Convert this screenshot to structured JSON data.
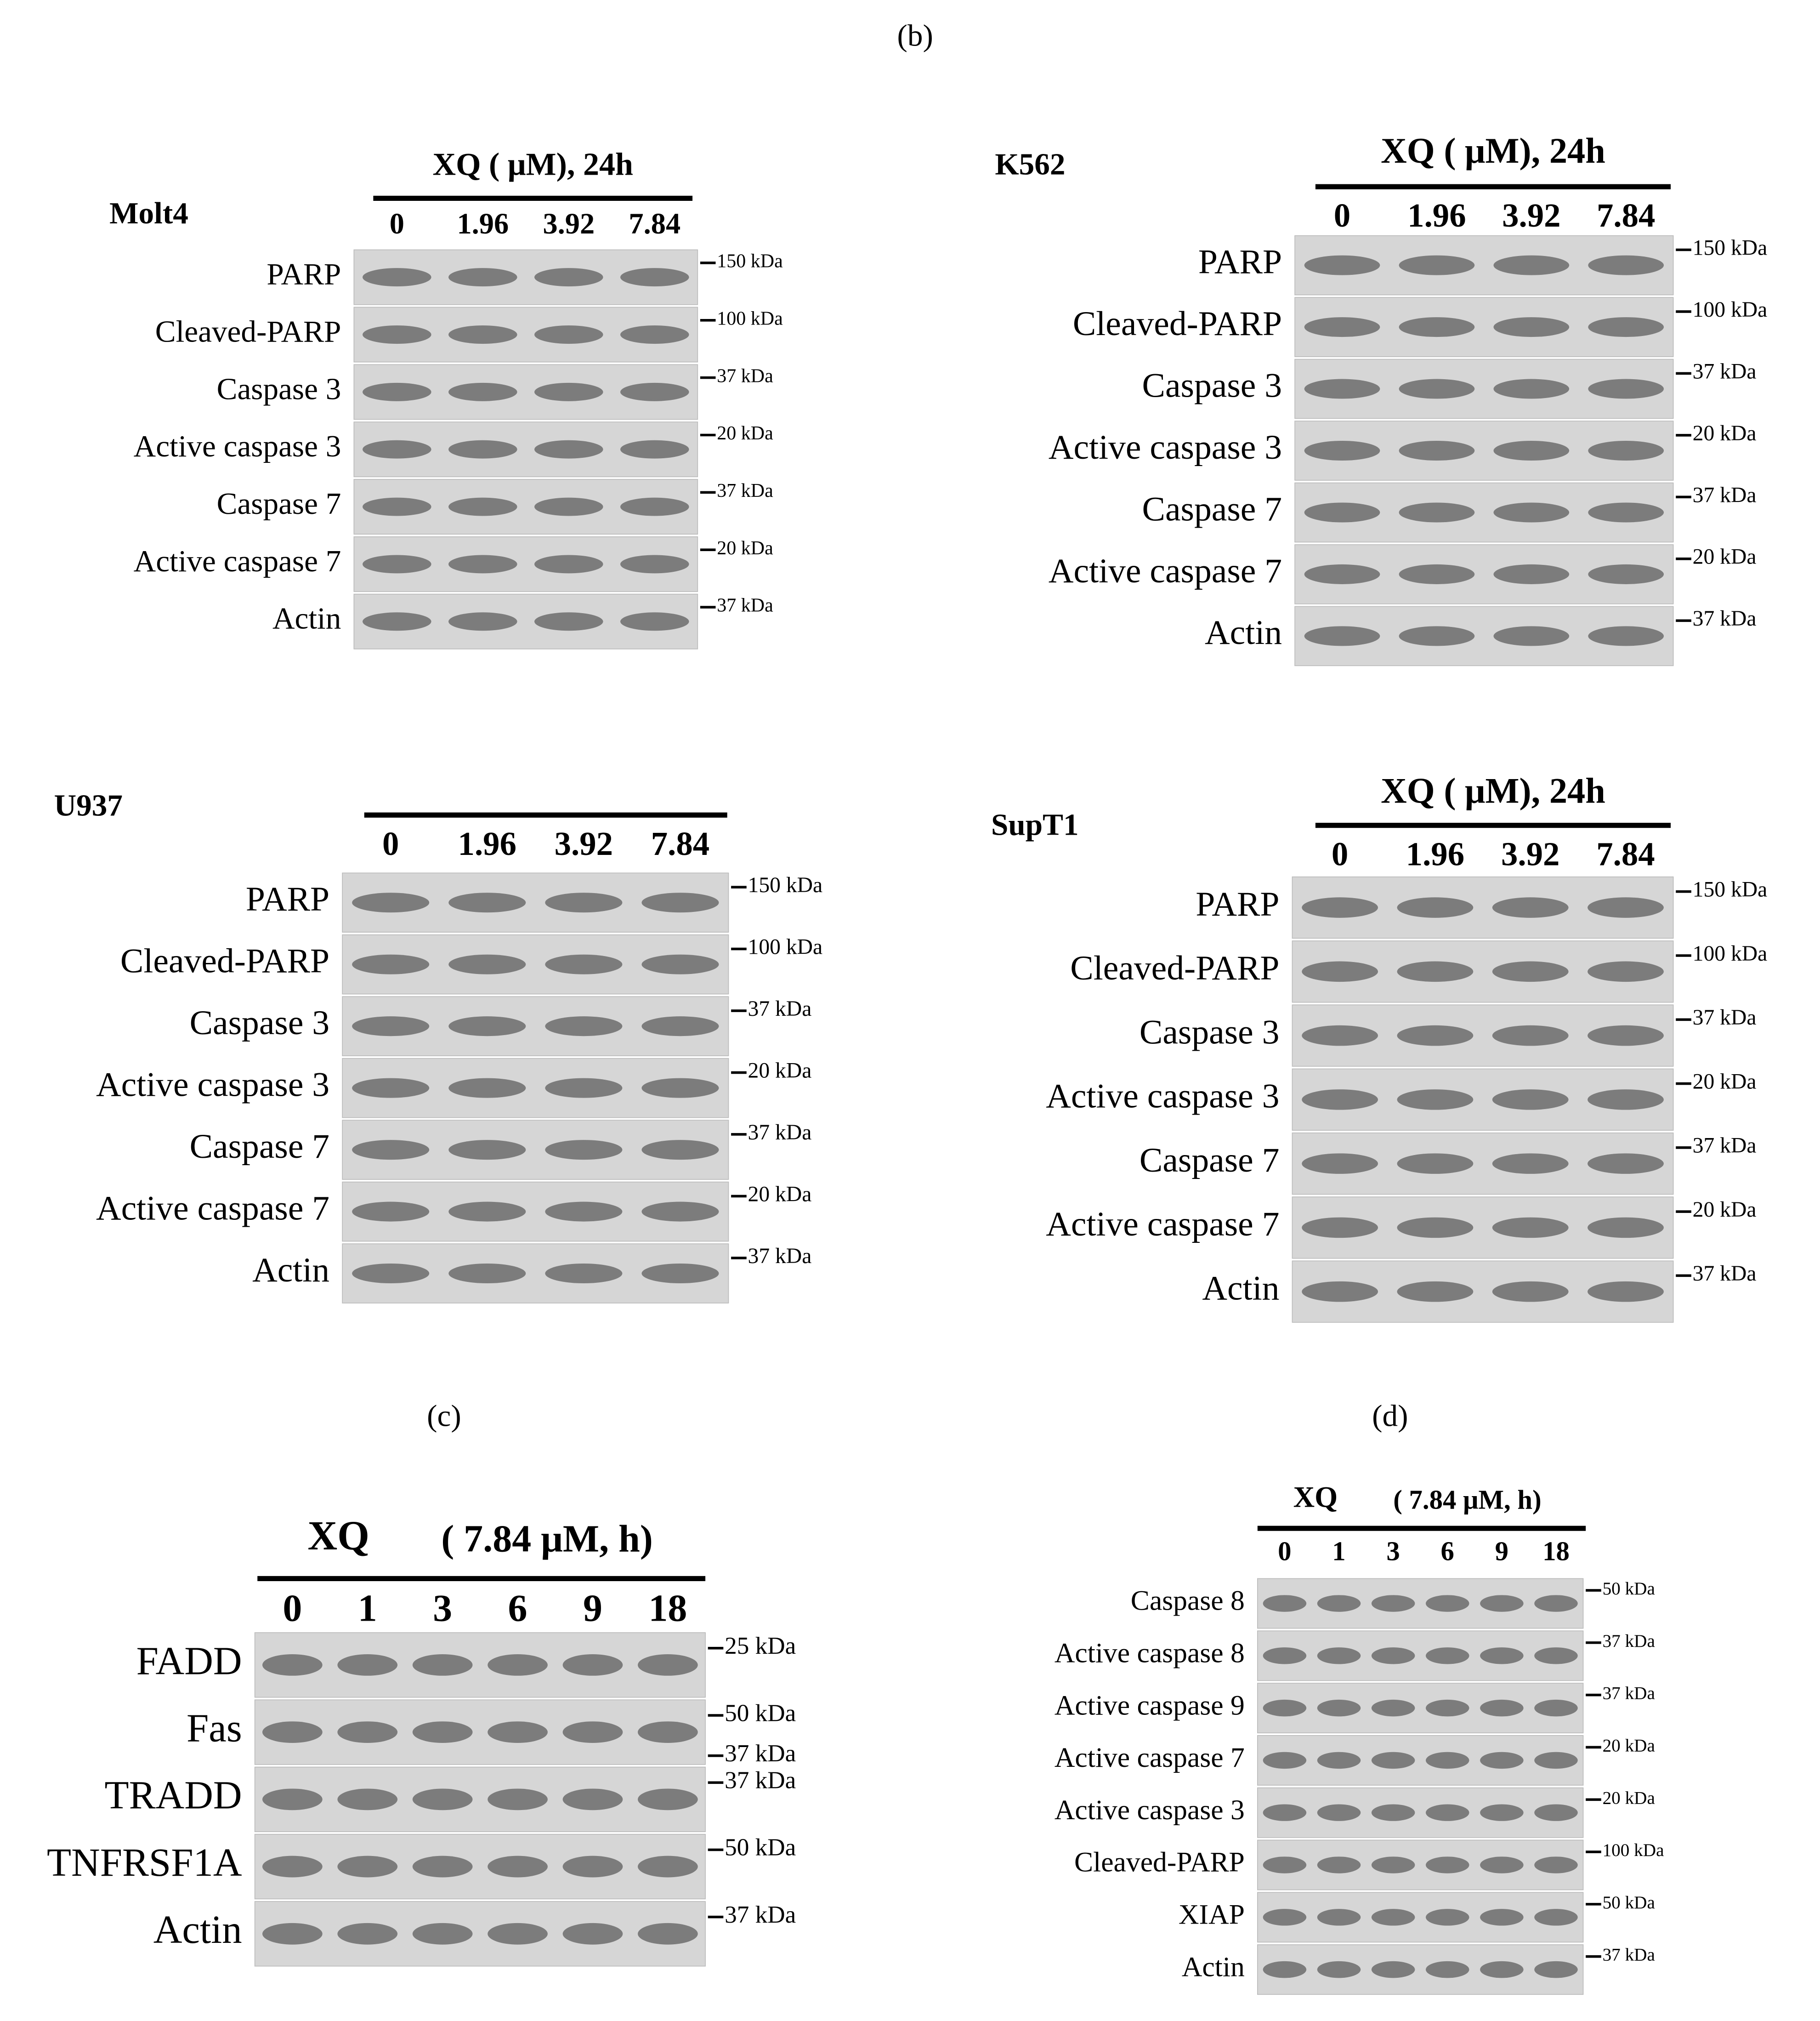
{
  "figure_labels": {
    "b": "(b)",
    "c": "(c)",
    "d": "(d)"
  },
  "blots": [
    {
      "cell_line": "Molt4",
      "header": "XQ ( μM), 24h",
      "doses": [
        "0",
        "1.96",
        "3.92",
        "7.84"
      ],
      "rows": [
        {
          "label": "PARP",
          "markers": [
            "150 kDa"
          ]
        },
        {
          "label": "Cleaved-PARP",
          "markers": [
            "100 kDa"
          ]
        },
        {
          "label": "Caspase 3",
          "markers": [
            "37 kDa"
          ]
        },
        {
          "label": "Active caspase 3",
          "markers": [
            "20 kDa"
          ]
        },
        {
          "label": "Caspase 7",
          "markers": [
            "37 kDa"
          ]
        },
        {
          "label": "Active caspase 7",
          "markers": [
            "20 kDa"
          ]
        },
        {
          "label": "Actin",
          "markers": [
            "37 kDa"
          ]
        }
      ]
    },
    {
      "cell_line": "K562",
      "header": "XQ ( μM), 24h",
      "doses": [
        "0",
        "1.96",
        "3.92",
        "7.84"
      ],
      "rows": [
        {
          "label": "PARP",
          "markers": [
            "150 kDa"
          ]
        },
        {
          "label": "Cleaved-PARP",
          "markers": [
            "100 kDa"
          ]
        },
        {
          "label": "Caspase 3",
          "markers": [
            "37 kDa"
          ]
        },
        {
          "label": "Active caspase 3",
          "markers": [
            "20 kDa"
          ]
        },
        {
          "label": "Caspase 7",
          "markers": [
            "37 kDa"
          ]
        },
        {
          "label": "Active caspase 7",
          "markers": [
            "20 kDa"
          ]
        },
        {
          "label": "Actin",
          "markers": [
            "37 kDa"
          ]
        }
      ]
    },
    {
      "cell_line": "U937",
      "doses": [
        "0",
        "1.96",
        "3.92",
        "7.84"
      ],
      "rows": [
        {
          "label": "PARP",
          "markers": [
            "150 kDa"
          ]
        },
        {
          "label": "Cleaved-PARP",
          "markers": [
            "100 kDa"
          ]
        },
        {
          "label": "Caspase 3",
          "markers": [
            "37 kDa"
          ]
        },
        {
          "label": "Active caspase 3",
          "markers": [
            "20 kDa"
          ]
        },
        {
          "label": "Caspase 7",
          "markers": [
            "37 kDa"
          ]
        },
        {
          "label": "Active caspase 7",
          "markers": [
            "20 kDa"
          ]
        },
        {
          "label": "Actin",
          "markers": [
            "37 kDa"
          ]
        }
      ]
    },
    {
      "cell_line": "SupT1",
      "header": "XQ ( μM), 24h",
      "doses": [
        "0",
        "1.96",
        "3.92",
        "7.84"
      ],
      "rows": [
        {
          "label": "PARP",
          "markers": [
            "150 kDa"
          ]
        },
        {
          "label": "Cleaved-PARP",
          "markers": [
            "100 kDa"
          ]
        },
        {
          "label": "Caspase 3",
          "markers": [
            "37 kDa"
          ]
        },
        {
          "label": "Active caspase 3",
          "markers": [
            "20 kDa"
          ]
        },
        {
          "label": "Caspase 7",
          "markers": [
            "37 kDa"
          ]
        },
        {
          "label": "Active caspase 7",
          "markers": [
            "20 kDa"
          ]
        },
        {
          "label": "Actin",
          "markers": [
            "37 kDa"
          ]
        }
      ]
    },
    {
      "header": "XQ",
      "header2": "( 7.84 μM, h)",
      "doses": [
        "0",
        "1",
        "3",
        "6",
        "9",
        "18"
      ],
      "rows": [
        {
          "label": "FADD",
          "markers": [
            "25 kDa"
          ]
        },
        {
          "label": "Fas",
          "markers": [
            "50 kDa",
            "37 kDa"
          ]
        },
        {
          "label": "TRADD",
          "markers": [
            "37 kDa"
          ]
        },
        {
          "label": "TNFRSF1A",
          "markers": [
            "50 kDa"
          ]
        },
        {
          "label": "Actin",
          "markers": [
            "37 kDa"
          ]
        }
      ]
    },
    {
      "header": "XQ",
      "header2": "( 7.84 μM, h)",
      "doses": [
        "0",
        "1",
        "3",
        "6",
        "9",
        "18"
      ],
      "rows": [
        {
          "label": "Caspase 8",
          "markers": [
            "50 kDa"
          ]
        },
        {
          "label": "Active caspase 8",
          "markers": [
            "37 kDa"
          ]
        },
        {
          "label": "Active caspase 9",
          "markers": [
            "37 kDa"
          ]
        },
        {
          "label": "Active caspase 7",
          "markers": [
            "20 kDa"
          ]
        },
        {
          "label": "Active caspase 3",
          "markers": [
            "20 kDa"
          ]
        },
        {
          "label": "Cleaved-PARP",
          "markers": [
            "100 kDa"
          ]
        },
        {
          "label": "XIAP",
          "markers": [
            "50 kDa"
          ]
        },
        {
          "label": "Actin",
          "markers": [
            "37 kDa"
          ]
        }
      ]
    }
  ]
}
